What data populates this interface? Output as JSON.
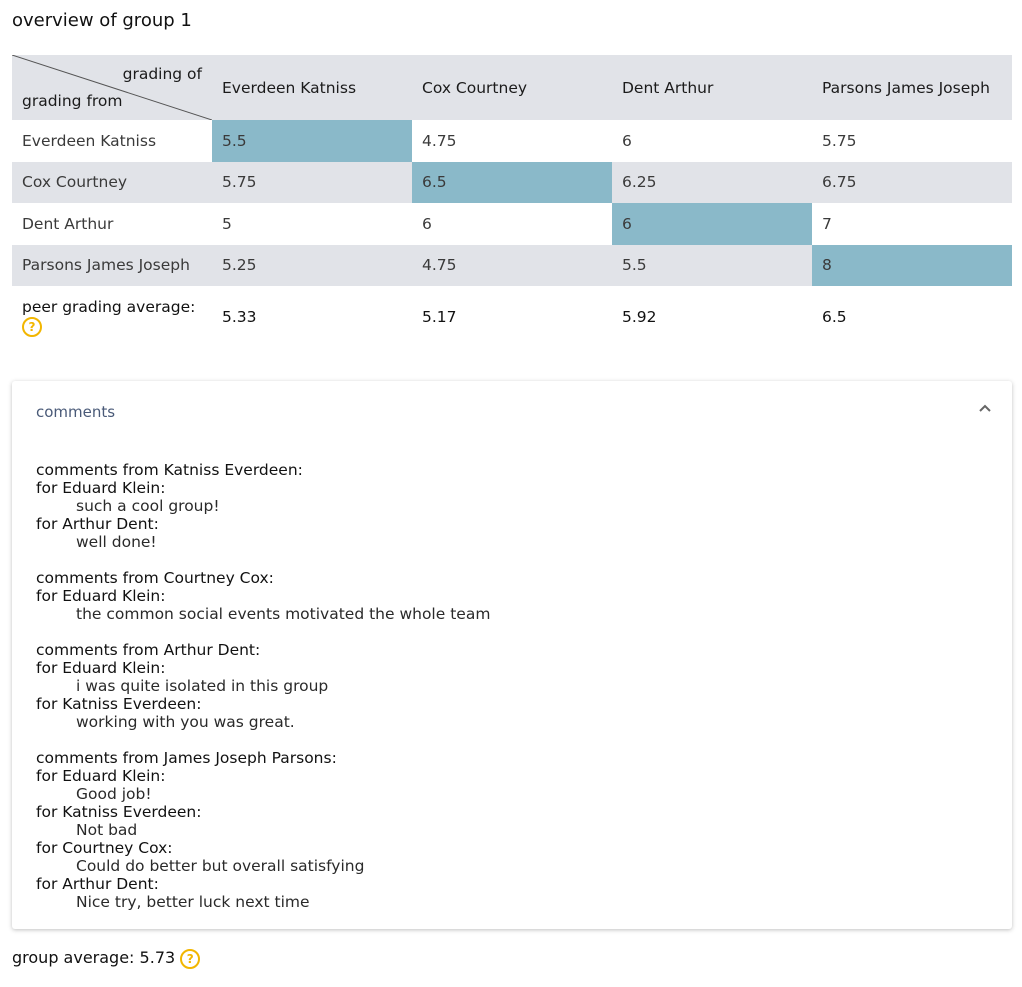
{
  "title": "overview of group 1",
  "grid": {
    "corner_top": "grading of",
    "corner_bottom": "grading from",
    "columns": [
      "Everdeen Katniss",
      "Cox Courtney",
      "Dent Arthur",
      "Parsons James Joseph"
    ],
    "rows": [
      {
        "name": "Everdeen Katniss",
        "values": [
          "5.5",
          "4.75",
          "6",
          "5.75"
        ]
      },
      {
        "name": "Cox Courtney",
        "values": [
          "5.75",
          "6.5",
          "6.25",
          "6.75"
        ]
      },
      {
        "name": "Dent Arthur",
        "values": [
          "5",
          "6",
          "6",
          "7"
        ]
      },
      {
        "name": "Parsons James Joseph",
        "values": [
          "5.25",
          "4.75",
          "5.5",
          "8"
        ]
      }
    ],
    "average_label": "peer grading average:",
    "averages": [
      "5.33",
      "5.17",
      "5.92",
      "6.5"
    ]
  },
  "help_icon_glyph": "?",
  "comments_panel": {
    "header": "comments",
    "groups": [
      {
        "from": "comments from Katniss Everdeen:",
        "entries": [
          {
            "for": "for Eduard Klein:",
            "text": "such a cool group!"
          },
          {
            "for": "for Arthur Dent:",
            "text": "well done!"
          }
        ]
      },
      {
        "from": "comments from Courtney Cox:",
        "entries": [
          {
            "for": "for Eduard Klein:",
            "text": "the common social events motivated the whole team"
          }
        ]
      },
      {
        "from": "comments from Arthur Dent:",
        "entries": [
          {
            "for": "for Eduard Klein:",
            "text": "i was quite isolated in this group"
          },
          {
            "for": "for Katniss Everdeen:",
            "text": "working with you was great."
          }
        ]
      },
      {
        "from": "comments from James Joseph Parsons:",
        "entries": [
          {
            "for": "for Eduard Klein:",
            "text": "Good job!"
          },
          {
            "for": "for Katniss Everdeen:",
            "text": "Not bad"
          },
          {
            "for": "for Courtney Cox:",
            "text": "Could do better but overall satisfying"
          },
          {
            "for": "for Arthur Dent:",
            "text": "Nice try, better luck next time"
          }
        ]
      }
    ]
  },
  "group_average": {
    "label": "group average:",
    "value": "5.73"
  },
  "colors": {
    "self_cell": "#8ab9c9",
    "stripe": "#e1e3e8",
    "help_icon": "#f2b600"
  }
}
